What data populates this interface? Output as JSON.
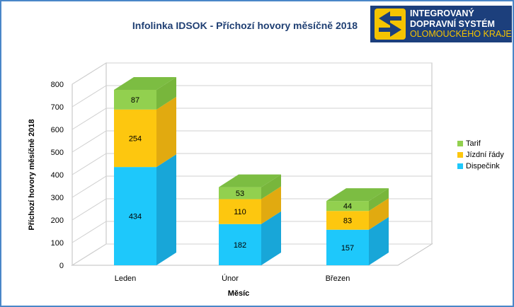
{
  "title": "Infolinka IDSOK - Příchozí hovory měsíčně 2018",
  "logo": {
    "line1": "INTEGROVANÝ",
    "line2": "DOPRAVNÍ SYSTÉM",
    "line3": "OLOMOUCKÉHO KRAJE"
  },
  "chart_data": {
    "type": "bar",
    "stacked": true,
    "view": "3d",
    "categories": [
      "Leden",
      "Únor",
      "Březen"
    ],
    "series": [
      {
        "name": "Dispečink",
        "values": [
          434,
          182,
          157
        ],
        "color": "#1ec8fb",
        "side_color": "#18a6d8",
        "top_color": "#14a0d2"
      },
      {
        "name": "Jízdní řády",
        "values": [
          254,
          110,
          83
        ],
        "color": "#fdc70f",
        "side_color": "#e1aa10",
        "top_color": "#e8ad00"
      },
      {
        "name": "Tarif",
        "values": [
          87,
          53,
          44
        ],
        "color": "#92d04f",
        "side_color": "#78b63c",
        "top_color": "#7cbd42"
      }
    ],
    "xlabel": "Měsíc",
    "ylabel": "Příchozí hovory měsíčně 2018",
    "ylim": [
      0,
      800
    ],
    "yticks": [
      0,
      100,
      200,
      300,
      400,
      500,
      600,
      700,
      800
    ],
    "grid": true,
    "legend_position": "right",
    "legend_order": [
      "Tarif",
      "Jízdní řády",
      "Dispečink"
    ]
  }
}
